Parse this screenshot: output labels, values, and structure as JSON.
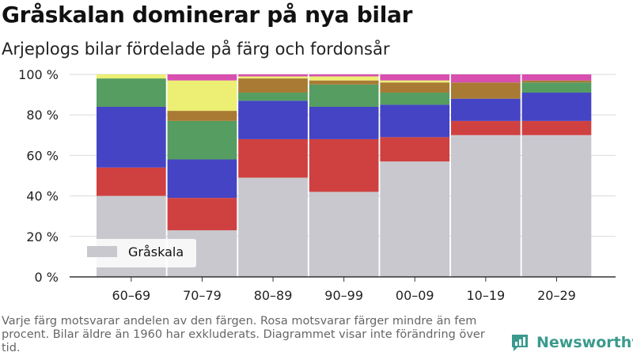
{
  "title": "Gråskalan dominerar på nya bilar",
  "subtitle": "Arjeplogs bilar fördelade på färg och fordonsår",
  "footnote": "Varje färg motsvarar andelen av den färgen. Rosa motsvarar färger mindre än fem procent. Bilar äldre än 1960 har exkluderats. Diagrammet visar inte förändring över tid.",
  "brand": {
    "name": "Newsworthy",
    "icon": "bar-chart-logo-icon",
    "color": "#3a9a8d"
  },
  "chart_data": {
    "type": "bar",
    "stacked": true,
    "categories": [
      "60–69",
      "70–79",
      "80–89",
      "90–99",
      "00–09",
      "10–19",
      "20–29"
    ],
    "yticks": [
      "0 %",
      "20 %",
      "40 %",
      "60 %",
      "80 %",
      "100 %"
    ],
    "ylim": [
      0,
      100
    ],
    "legend": {
      "label": "Gråskala",
      "placement": "bottom-left"
    },
    "series": [
      {
        "name": "Gråskala",
        "color": "#c9c8ce",
        "values": [
          40,
          23,
          49,
          42,
          57,
          70,
          70
        ]
      },
      {
        "color": "#cf4140",
        "values": [
          14,
          16,
          19,
          26,
          12,
          7,
          7
        ]
      },
      {
        "color": "#4444c4",
        "values": [
          30,
          19,
          19,
          16,
          16,
          11,
          14
        ]
      },
      {
        "color": "#559d60",
        "values": [
          14,
          19,
          4,
          11,
          6,
          0,
          5
        ]
      },
      {
        "color": "#a97a34",
        "values": [
          0,
          5,
          7,
          2,
          5,
          8,
          1
        ]
      },
      {
        "color": "#ecef73",
        "values": [
          2,
          15,
          1,
          2,
          1,
          0,
          0
        ]
      },
      {
        "color": "#d84fb0",
        "values": [
          0,
          3,
          1,
          1,
          3,
          4,
          3
        ]
      }
    ]
  }
}
